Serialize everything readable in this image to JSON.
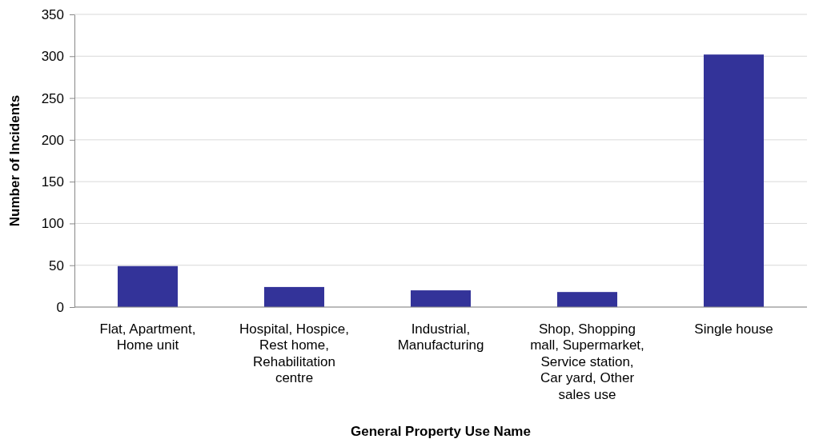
{
  "chart_data": {
    "type": "bar",
    "xlabel": "General Property Use Name",
    "ylabel": "Number of Incidents",
    "categories": [
      "Flat, Apartment, Home unit",
      "Hospital, Hospice, Rest home, Rehabilitation centre",
      "Industrial, Manufacturing",
      "Shop, Shopping mall, Supermarket, Service station, Car yard, Other sales use",
      "Single house"
    ],
    "values": [
      49,
      24,
      20,
      18,
      302
    ],
    "color": "#333399",
    "ylim": [
      0,
      350
    ],
    "yticks": [
      0,
      50,
      100,
      150,
      200,
      250,
      300,
      350
    ],
    "grid": "y"
  }
}
